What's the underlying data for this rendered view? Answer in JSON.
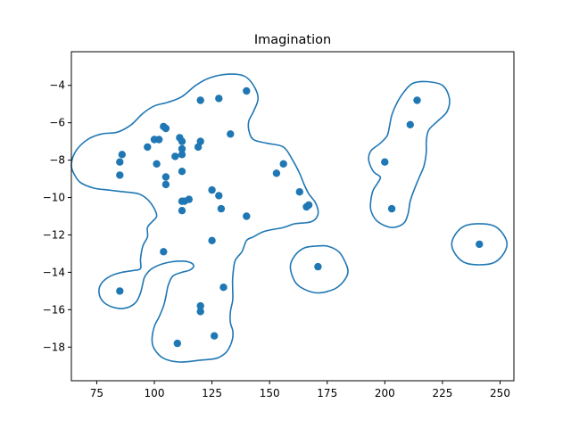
{
  "chart_data": {
    "type": "scatter",
    "title": "Imagination",
    "xlabel": "",
    "ylabel": "",
    "xlim": [
      64,
      256
    ],
    "ylim": [
      -19.8,
      -2.2
    ],
    "x_ticks": [
      75,
      100,
      125,
      150,
      175,
      200,
      225,
      250
    ],
    "y_ticks": [
      -18,
      -16,
      -14,
      -12,
      -10,
      -8,
      -6,
      -4
    ],
    "grid": false,
    "legend": "none",
    "color": "#1f77b4",
    "points": [
      [
        140,
        -4.3
      ],
      [
        120,
        -4.8
      ],
      [
        128,
        -4.7
      ],
      [
        104,
        -6.2
      ],
      [
        105,
        -6.3
      ],
      [
        133,
        -6.6
      ],
      [
        100,
        -6.9
      ],
      [
        102,
        -6.9
      ],
      [
        111,
        -6.8
      ],
      [
        112,
        -7.0
      ],
      [
        120,
        -7.0
      ],
      [
        119,
        -7.3
      ],
      [
        97,
        -7.3
      ],
      [
        112,
        -7.4
      ],
      [
        86,
        -7.7
      ],
      [
        112,
        -7.7
      ],
      [
        109,
        -7.8
      ],
      [
        85,
        -8.1
      ],
      [
        101,
        -8.2
      ],
      [
        112,
        -8.6
      ],
      [
        85,
        -8.8
      ],
      [
        105,
        -8.9
      ],
      [
        105,
        -9.3
      ],
      [
        125,
        -9.6
      ],
      [
        128,
        -9.9
      ],
      [
        112,
        -10.2
      ],
      [
        113,
        -10.2
      ],
      [
        115,
        -10.1
      ],
      [
        112,
        -10.7
      ],
      [
        129,
        -10.6
      ],
      [
        140,
        -11.0
      ],
      [
        156,
        -8.2
      ],
      [
        153,
        -8.7
      ],
      [
        163,
        -9.7
      ],
      [
        166,
        -10.5
      ],
      [
        167,
        -10.4
      ],
      [
        104,
        -12.9
      ],
      [
        125,
        -12.3
      ],
      [
        171,
        -13.7
      ],
      [
        85,
        -15.0
      ],
      [
        130,
        -14.8
      ],
      [
        120,
        -15.8
      ],
      [
        120,
        -16.1
      ],
      [
        126,
        -17.4
      ],
      [
        110,
        -17.8
      ],
      [
        200,
        -8.1
      ],
      [
        211,
        -6.1
      ],
      [
        214,
        -4.8
      ],
      [
        203,
        -10.6
      ],
      [
        241,
        -12.5
      ]
    ],
    "contours": [
      [
        [
          64,
          -8.2
        ],
        [
          66,
          -7.5
        ],
        [
          71,
          -6.9
        ],
        [
          77,
          -6.6
        ],
        [
          84,
          -6.5
        ],
        [
          90,
          -6.1
        ],
        [
          95,
          -5.5
        ],
        [
          100,
          -5.1
        ],
        [
          106,
          -4.9
        ],
        [
          112,
          -4.6
        ],
        [
          118,
          -4.0
        ],
        [
          124,
          -3.6
        ],
        [
          132,
          -3.4
        ],
        [
          139,
          -3.5
        ],
        [
          143,
          -4.0
        ],
        [
          145,
          -4.7
        ],
        [
          143,
          -5.4
        ],
        [
          141,
          -5.9
        ],
        [
          141,
          -6.4
        ],
        [
          143,
          -6.9
        ],
        [
          149,
          -7.1
        ],
        [
          156,
          -7.3
        ],
        [
          160,
          -8.0
        ],
        [
          163,
          -8.7
        ],
        [
          165,
          -9.3
        ],
        [
          167,
          -9.8
        ],
        [
          170,
          -10.3
        ],
        [
          171,
          -10.9
        ],
        [
          168,
          -11.3
        ],
        [
          161,
          -11.4
        ],
        [
          156,
          -11.6
        ],
        [
          148,
          -11.8
        ],
        [
          143,
          -12.1
        ],
        [
          140,
          -12.3
        ],
        [
          138,
          -12.9
        ],
        [
          135,
          -13.4
        ],
        [
          134,
          -14.3
        ],
        [
          134,
          -14.9
        ],
        [
          134,
          -15.5
        ],
        [
          133,
          -16.1
        ],
        [
          133,
          -16.7
        ],
        [
          134,
          -17.1
        ],
        [
          134,
          -17.5
        ],
        [
          133,
          -17.9
        ],
        [
          131,
          -18.3
        ],
        [
          127,
          -18.6
        ],
        [
          120,
          -18.7
        ],
        [
          111,
          -18.8
        ],
        [
          104,
          -18.6
        ],
        [
          100,
          -18.1
        ],
        [
          99,
          -17.6
        ],
        [
          100,
          -16.9
        ],
        [
          102,
          -16.4
        ],
        [
          104,
          -15.8
        ],
        [
          105,
          -15.3
        ],
        [
          106,
          -14.7
        ],
        [
          108,
          -14.2
        ],
        [
          112,
          -14.0
        ],
        [
          115,
          -13.9
        ],
        [
          117,
          -13.7
        ],
        [
          116,
          -13.5
        ],
        [
          112,
          -13.4
        ],
        [
          105,
          -13.5
        ],
        [
          99,
          -13.8
        ],
        [
          96,
          -14.2
        ],
        [
          95,
          -14.6
        ],
        [
          94,
          -15.1
        ],
        [
          92,
          -15.6
        ],
        [
          88,
          -15.9
        ],
        [
          83,
          -15.9
        ],
        [
          78,
          -15.6
        ],
        [
          76,
          -15.1
        ],
        [
          77,
          -14.6
        ],
        [
          81,
          -14.2
        ],
        [
          86,
          -14.0
        ],
        [
          91,
          -13.9
        ],
        [
          94,
          -13.8
        ],
        [
          94,
          -13.3
        ],
        [
          95,
          -12.6
        ],
        [
          97,
          -12.1
        ],
        [
          97,
          -11.6
        ],
        [
          99,
          -11.3
        ],
        [
          101,
          -11.0
        ],
        [
          100,
          -10.6
        ],
        [
          97,
          -10.1
        ],
        [
          93,
          -9.8
        ],
        [
          87,
          -9.7
        ],
        [
          80,
          -9.6
        ],
        [
          74,
          -9.5
        ],
        [
          68,
          -9.2
        ],
        [
          65,
          -8.7
        ]
      ],
      [
        [
          193,
          -8.0
        ],
        [
          194,
          -7.5
        ],
        [
          198,
          -7.1
        ],
        [
          201,
          -6.7
        ],
        [
          202,
          -6.2
        ],
        [
          203,
          -5.6
        ],
        [
          205,
          -5.0
        ],
        [
          208,
          -4.4
        ],
        [
          212,
          -3.9
        ],
        [
          218,
          -3.8
        ],
        [
          225,
          -4.0
        ],
        [
          228,
          -4.7
        ],
        [
          227,
          -5.4
        ],
        [
          223,
          -5.9
        ],
        [
          219,
          -6.4
        ],
        [
          218,
          -7.0
        ],
        [
          218,
          -7.6
        ],
        [
          217,
          -8.3
        ],
        [
          215,
          -8.9
        ],
        [
          213,
          -9.5
        ],
        [
          211,
          -10.2
        ],
        [
          210,
          -10.9
        ],
        [
          208,
          -11.4
        ],
        [
          203,
          -11.6
        ],
        [
          197,
          -11.3
        ],
        [
          194,
          -10.7
        ],
        [
          194,
          -10.1
        ],
        [
          195,
          -9.6
        ],
        [
          197,
          -9.2
        ],
        [
          198,
          -8.9
        ],
        [
          195,
          -8.6
        ]
      ],
      [
        [
          159,
          -13.7
        ],
        [
          161,
          -13.1
        ],
        [
          165,
          -12.7
        ],
        [
          170,
          -12.6
        ],
        [
          175,
          -12.6
        ],
        [
          180,
          -12.9
        ],
        [
          183,
          -13.5
        ],
        [
          184,
          -14.0
        ],
        [
          182,
          -14.5
        ],
        [
          178,
          -14.9
        ],
        [
          171,
          -15.1
        ],
        [
          165,
          -14.9
        ],
        [
          161,
          -14.5
        ]
      ],
      [
        [
          229,
          -12.5
        ],
        [
          231,
          -11.9
        ],
        [
          235,
          -11.5
        ],
        [
          241,
          -11.4
        ],
        [
          247,
          -11.5
        ],
        [
          251,
          -11.9
        ],
        [
          253,
          -12.5
        ],
        [
          251,
          -13.1
        ],
        [
          247,
          -13.5
        ],
        [
          241,
          -13.6
        ],
        [
          235,
          -13.5
        ],
        [
          231,
          -13.1
        ]
      ]
    ]
  }
}
